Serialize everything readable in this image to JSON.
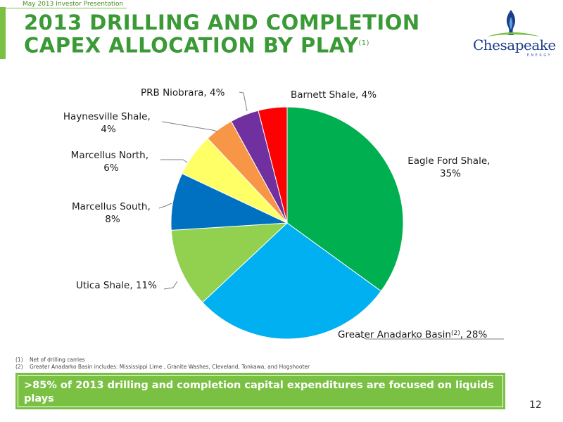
{
  "header": {
    "deck_label": "May 2013 Investor Presentation",
    "title_line1": "2013 DRILLING AND COMPLETION",
    "title_line2": "CAPEX ALLOCATION BY PLAY",
    "title_footnote_marker": "(1)"
  },
  "logo": {
    "name": "Chesapeake",
    "subtext": "ENERGY"
  },
  "chart_data": {
    "type": "pie",
    "title": "",
    "slices": [
      {
        "label": "Eagle Ford Shale",
        "value": 35,
        "value_label": "35%",
        "color": "#00b050"
      },
      {
        "label": "Greater Anadarko Basin",
        "label_sup": "(2)",
        "value": 28,
        "value_label": "28%",
        "color": "#00b0f0"
      },
      {
        "label": "Utica Shale",
        "value": 11,
        "value_label": "11%",
        "color": "#92d050"
      },
      {
        "label": "Marcellus South",
        "value": 8,
        "value_label": "8%",
        "color": "#0070c0"
      },
      {
        "label": "Marcellus North",
        "value": 6,
        "value_label": "6%",
        "color": "#ffff66"
      },
      {
        "label": "Haynesville Shale",
        "value": 4,
        "value_label": "4%",
        "color": "#f79646"
      },
      {
        "label": "PRB Niobrara",
        "value": 4,
        "value_label": "4%",
        "color": "#7030a0"
      },
      {
        "label": "Barnett Shale",
        "value": 4,
        "value_label": "4%",
        "color": "#ff0000"
      }
    ]
  },
  "labels": {
    "eagle_line1": "Eagle Ford Shale,",
    "eagle_line2": "35%",
    "anadarko_pre": "Greater Anadarko Basin",
    "anadarko_sup": "(2)",
    "anadarko_post": ", 28%",
    "utica": "Utica Shale, 11%",
    "msouth_line1": "Marcellus South,",
    "msouth_line2": "8%",
    "mnorth_line1": "Marcellus North,",
    "mnorth_line2": "6%",
    "haynesville_line1": "Haynesville Shale,",
    "haynesville_line2": "4%",
    "prb": "PRB Niobrara, 4%",
    "barnett": "Barnett Shale, 4%"
  },
  "footnotes": [
    {
      "marker": "(1)",
      "text": "Net of drilling carries"
    },
    {
      "marker": "(2)",
      "text": "Greater Anadarko Basin includes: Mississippi Lime , Granite Washes, Cleveland, Tonkawa, and Hogshooter"
    }
  ],
  "callout": {
    "text": ">85% of 2013 drilling and completion capital expenditures are focused on liquids plays"
  },
  "page_number": "12"
}
